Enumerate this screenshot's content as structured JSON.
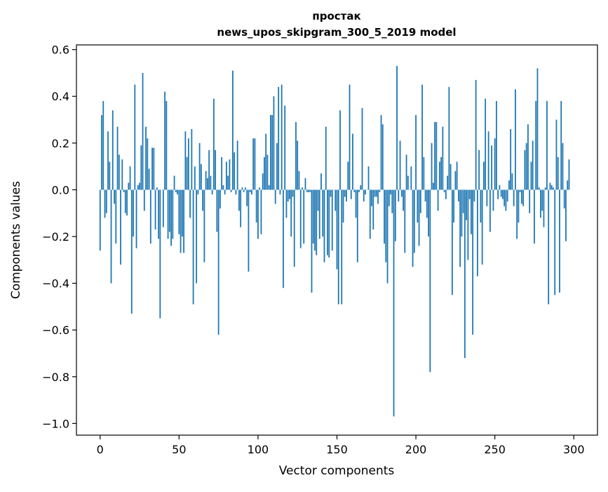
{
  "chart_data": {
    "type": "bar",
    "title_line1": "простак",
    "title_line2": "news_upos_skipgram_300_5_2019 model",
    "xlabel": "Vector components",
    "ylabel": "Components values",
    "xlim": [
      -15,
      315
    ],
    "ylim": [
      -1.05,
      0.62
    ],
    "xticks": [
      0,
      50,
      100,
      150,
      200,
      250,
      300
    ],
    "xtick_labels": [
      "0",
      "50",
      "100",
      "150",
      "200",
      "250",
      "300"
    ],
    "yticks": [
      -1.0,
      -0.8,
      -0.6,
      -0.4,
      -0.2,
      0.0,
      0.2,
      0.4,
      0.6
    ],
    "ytick_labels": [
      "−1.0",
      "−0.8",
      "−0.6",
      "−0.4",
      "−0.2",
      "0.0",
      "0.2",
      "0.4",
      "0.6"
    ],
    "bar_color": "#1f77b4",
    "grid": false,
    "legend": "none",
    "values": [
      -0.26,
      0.32,
      0.38,
      -0.12,
      -0.1,
      0.25,
      0.12,
      -0.4,
      0.34,
      -0.06,
      -0.23,
      0.27,
      0.15,
      -0.32,
      0.13,
      -0.01,
      -0.1,
      -0.11,
      0.03,
      0.1,
      -0.53,
      -0.2,
      0.45,
      -0.25,
      0.02,
      0.03,
      0.19,
      0.5,
      -0.09,
      0.27,
      0.22,
      0.09,
      -0.23,
      0.18,
      0.18,
      -0.17,
      0.01,
      -0.21,
      -0.55,
      0.0,
      -0.16,
      0.42,
      0.38,
      -0.21,
      -0.18,
      -0.24,
      -0.21,
      0.06,
      -0.01,
      -0.02,
      -0.19,
      -0.27,
      -0.2,
      -0.27,
      0.25,
      0.14,
      0.22,
      -0.12,
      0.26,
      -0.49,
      0.1,
      -0.4,
      -0.02,
      0.2,
      0.11,
      -0.09,
      -0.31,
      0.08,
      0.05,
      0.17,
      0.06,
      -0.02,
      0.39,
      0.17,
      -0.18,
      -0.62,
      -0.08,
      0.14,
      0.02,
      -0.02,
      0.12,
      0.06,
      0.13,
      -0.01,
      0.51,
      0.16,
      -0.02,
      0.21,
      -0.09,
      -0.16,
      0.01,
      -0.01,
      0.01,
      -0.07,
      -0.35,
      -0.01,
      -0.02,
      0.22,
      0.22,
      -0.14,
      -0.21,
      0.01,
      -0.19,
      0.07,
      0.14,
      0.24,
      0.15,
      0.02,
      0.32,
      0.32,
      0.4,
      -0.06,
      0.2,
      0.44,
      -0.02,
      0.45,
      -0.42,
      0.36,
      -0.12,
      -0.05,
      -0.04,
      -0.2,
      -0.03,
      -0.33,
      0.29,
      0.21,
      0.08,
      -0.25,
      0.01,
      -0.23,
      0.05,
      -0.01,
      -0.01,
      -0.01,
      -0.44,
      -0.23,
      -0.26,
      -0.28,
      -0.09,
      -0.21,
      0.07,
      -0.2,
      -0.31,
      0.27,
      -0.28,
      -0.29,
      -0.03,
      -0.26,
      0.0,
      -0.09,
      -0.34,
      -0.49,
      0.34,
      -0.49,
      -0.14,
      -0.03,
      -0.05,
      0.12,
      0.45,
      -0.04,
      0.24,
      -0.01,
      -0.12,
      -0.31,
      -0.01,
      0.02,
      0.35,
      -0.05,
      -0.02,
      0.0,
      0.1,
      -0.21,
      -0.07,
      -0.17,
      -0.03,
      -0.03,
      -0.06,
      -0.01,
      0.32,
      0.28,
      -0.23,
      -0.31,
      -0.4,
      -0.07,
      -0.02,
      -0.1,
      -0.97,
      -0.22,
      0.53,
      -0.05,
      0.21,
      -0.03,
      -0.09,
      -0.27,
      0.15,
      0.06,
      0.0,
      0.1,
      -0.33,
      -0.27,
      0.32,
      -0.14,
      -0.24,
      -0.1,
      0.45,
      0.14,
      -0.05,
      -0.12,
      -0.2,
      -0.78,
      0.2,
      0.03,
      0.29,
      0.29,
      -0.09,
      0.12,
      0.14,
      0.27,
      -0.01,
      -0.04,
      0.06,
      0.44,
      0.11,
      -0.45,
      -0.14,
      0.08,
      0.12,
      -0.05,
      -0.33,
      -0.2,
      -0.1,
      -0.72,
      -0.13,
      -0.3,
      -0.04,
      -0.19,
      -0.62,
      -0.05,
      0.47,
      -0.37,
      0.17,
      -0.14,
      -0.32,
      0.12,
      0.39,
      -0.07,
      0.25,
      -0.18,
      0.19,
      -0.09,
      0.22,
      0.38,
      -0.04,
      0.02,
      -0.03,
      -0.04,
      -0.07,
      -0.09,
      -0.05,
      0.04,
      0.26,
      0.07,
      -0.07,
      0.43,
      -0.21,
      -0.14,
      -0.01,
      -0.06,
      -0.07,
      0.17,
      0.2,
      0.28,
      -0.1,
      0.12,
      0.21,
      -0.23,
      0.38,
      0.52,
      0.01,
      -0.12,
      -0.09,
      -0.16,
      0.01,
      0.38,
      -0.49,
      0.03,
      0.02,
      0.01,
      -0.45,
      0.3,
      0.14,
      -0.44,
      0.38,
      0.2,
      -0.08,
      -0.22,
      0.04,
      0.13
    ]
  }
}
